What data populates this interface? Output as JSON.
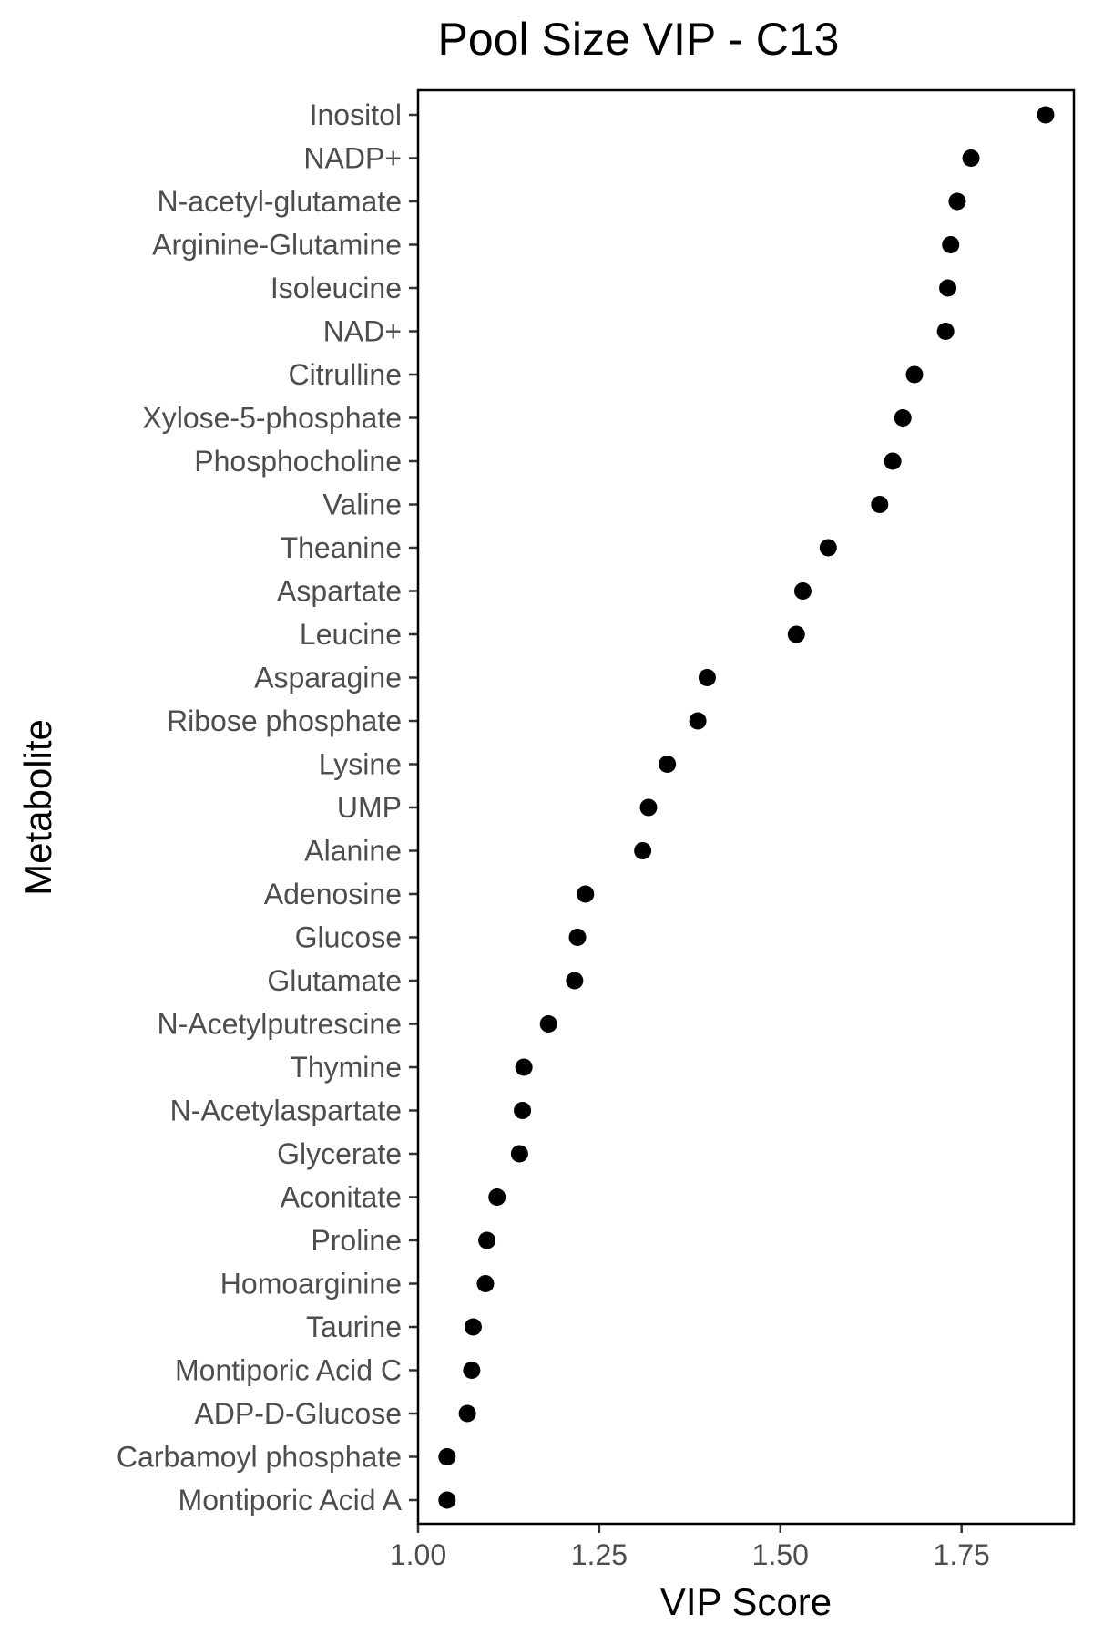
{
  "chart_data": {
    "type": "scatter",
    "title": "Pool Size VIP - C13",
    "xlabel": "VIP Score",
    "ylabel": "Metabolite",
    "xlim": [
      1.0,
      1.905
    ],
    "xticks": [
      1.0,
      1.25,
      1.5,
      1.75
    ],
    "xtick_labels": [
      "1.00",
      "1.25",
      "1.50",
      "1.75"
    ],
    "grid": false,
    "legend": "none",
    "point_color": "#000000",
    "categories": [
      "Inositol",
      "NADP+",
      "N-acetyl-glutamate",
      "Arginine-Glutamine",
      "Isoleucine",
      "NAD+",
      "Citrulline",
      "Xylose-5-phosphate",
      "Phosphocholine",
      "Valine",
      "Theanine",
      "Aspartate",
      "Leucine",
      "Asparagine",
      "Ribose phosphate",
      "Lysine",
      "UMP",
      "Alanine",
      "Adenosine",
      "Glucose",
      "Glutamate",
      "N-Acetylputrescine",
      "Thymine",
      "N-Acetylaspartate",
      "Glycerate",
      "Aconitate",
      "Proline",
      "Homoarginine",
      "Taurine",
      "Montiporic Acid C",
      "ADP-D-Glucose",
      "Carbamoyl phosphate",
      "Montiporic Acid A"
    ],
    "values": [
      1.866,
      1.763,
      1.744,
      1.735,
      1.731,
      1.728,
      1.685,
      1.669,
      1.655,
      1.637,
      1.566,
      1.531,
      1.522,
      1.399,
      1.386,
      1.344,
      1.318,
      1.31,
      1.231,
      1.22,
      1.216,
      1.18,
      1.146,
      1.144,
      1.14,
      1.109,
      1.095,
      1.093,
      1.076,
      1.074,
      1.068,
      1.04,
      1.04
    ]
  }
}
